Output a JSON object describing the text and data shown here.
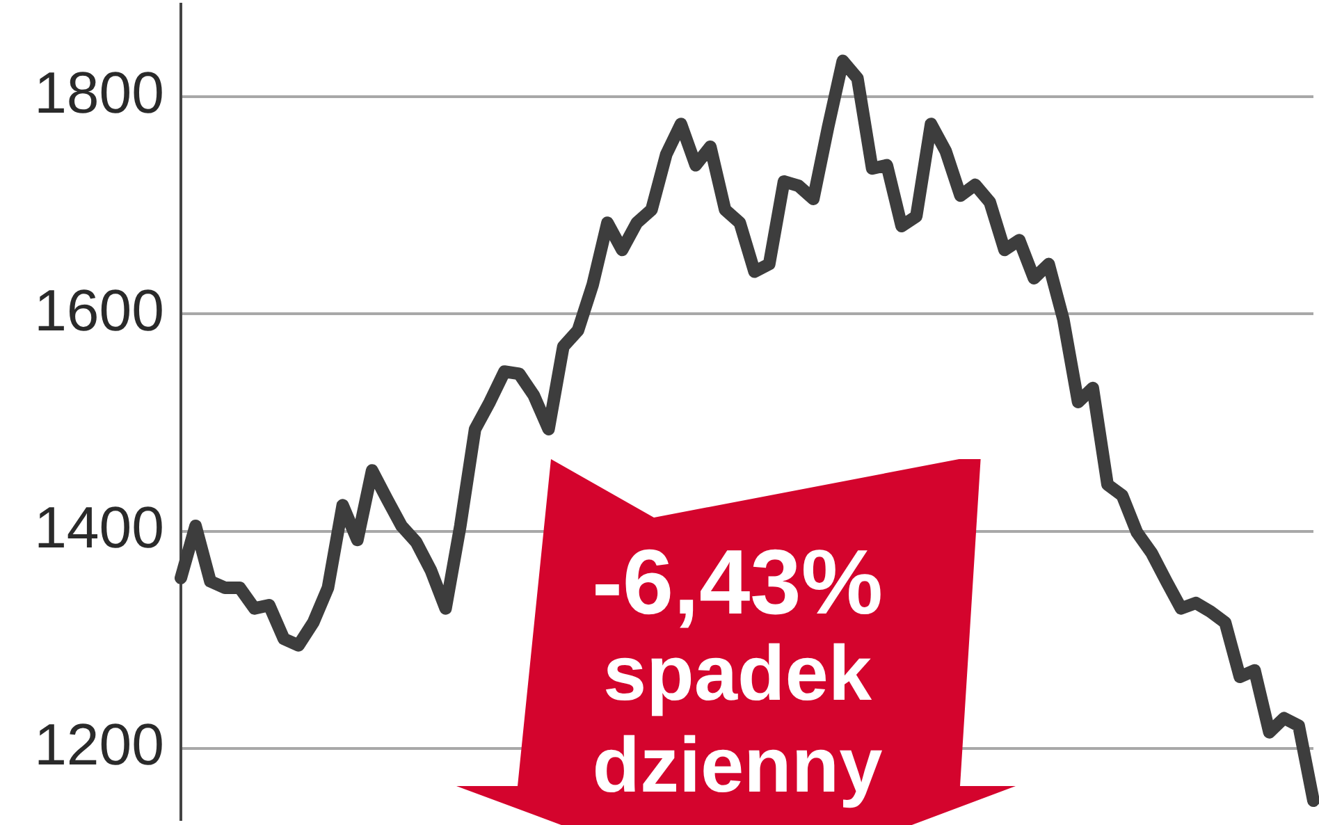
{
  "chart_data": {
    "type": "line",
    "categories": [
      null,
      null,
      null,
      null,
      null,
      null,
      null,
      null,
      null,
      null,
      null,
      null,
      null,
      null,
      null,
      null,
      null,
      null,
      null,
      null,
      null,
      null,
      null,
      null,
      null,
      null,
      null,
      null,
      null,
      null,
      null,
      null,
      null,
      null,
      null,
      null,
      null,
      null,
      null,
      null,
      null,
      null,
      null,
      null,
      null,
      null,
      null,
      null,
      null,
      null,
      null,
      null,
      null,
      null,
      null,
      null,
      null,
      null,
      null,
      null,
      null,
      null,
      null,
      null,
      null,
      null,
      null,
      null,
      null,
      null,
      null,
      null,
      null,
      null,
      null,
      null,
      null,
      null
    ],
    "values": [
      1357,
      1405,
      1354,
      1348,
      1348,
      1329,
      1332,
      1301,
      1295,
      1316,
      1348,
      1424,
      1392,
      1456,
      1430,
      1405,
      1390,
      1364,
      1329,
      1405,
      1494,
      1519,
      1547,
      1545,
      1525,
      1494,
      1570,
      1585,
      1627,
      1684,
      1659,
      1684,
      1696,
      1747,
      1775,
      1737,
      1754,
      1696,
      1684,
      1639,
      1646,
      1722,
      1718,
      1706,
      1772,
      1833,
      1817,
      1734,
      1737,
      1681,
      1690,
      1775,
      1750,
      1709,
      1719,
      1703,
      1659,
      1668,
      1633,
      1646,
      1595,
      1519,
      1532,
      1443,
      1433,
      1399,
      1380,
      1354,
      1329,
      1334,
      1326,
      1316,
      1266,
      1272,
      1215,
      1228,
      1221,
      1152
    ],
    "color": "#3d3d3d",
    "ylim": [
      1135,
      1885
    ],
    "yticks": [
      1200,
      1400,
      1600,
      1800
    ],
    "grid": "y",
    "tick_labels": "y",
    "marker": "none",
    "line_style": "solid",
    "annotations": [
      "-6,43% spadek dzienny"
    ]
  }
}
